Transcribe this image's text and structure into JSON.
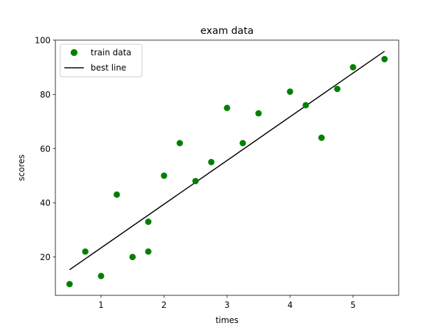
{
  "chart_data": {
    "type": "scatter",
    "title": "exam data",
    "xlabel": "times",
    "ylabel": "scores",
    "xlim": [
      0.275,
      5.725
    ],
    "ylim": [
      5.85,
      100
    ],
    "xticks": [
      1,
      2,
      3,
      4,
      5
    ],
    "yticks": [
      20,
      40,
      60,
      80,
      100
    ],
    "grid": false,
    "legend_position": "top-left",
    "series": [
      {
        "name": "train data",
        "kind": "scatter",
        "color": "#008000",
        "x": [
          0.5,
          0.75,
          1.0,
          1.25,
          1.5,
          1.75,
          1.75,
          2.0,
          2.25,
          2.5,
          2.75,
          3.0,
          3.25,
          3.5,
          4.0,
          4.25,
          4.5,
          4.75,
          5.0,
          5.5
        ],
        "y": [
          10,
          22,
          13,
          43,
          20,
          22,
          33,
          50,
          62,
          48,
          55,
          75,
          62,
          73,
          81,
          76,
          64,
          82,
          90,
          93
        ]
      },
      {
        "name": "best line",
        "kind": "line",
        "color": "#000000",
        "x": [
          0.5,
          5.5
        ],
        "y": [
          15.3,
          95.9
        ]
      }
    ]
  }
}
